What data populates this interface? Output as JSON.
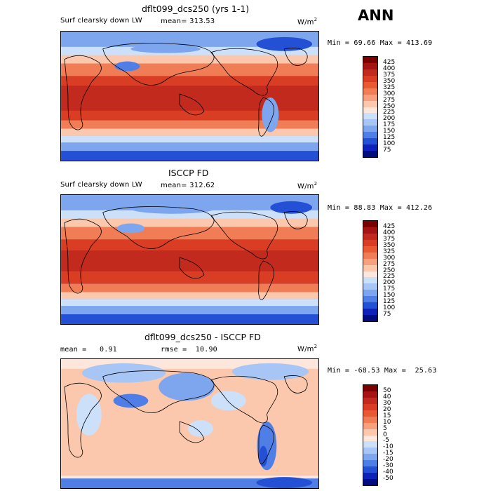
{
  "season": "ANN",
  "units": "W/m",
  "units_sup": "2",
  "panels": [
    {
      "title": "dflt099_dcs250 (yrs 1-1)",
      "variable": "Surf clearsky down LW",
      "mean_label": "mean=",
      "mean": "313.53",
      "min_label": "Min =",
      "min": "69.66",
      "max_label": "Max =",
      "max": "413.69",
      "levels": [
        "425",
        "400",
        "375",
        "350",
        "325",
        "300",
        "275",
        "250",
        "225",
        "200",
        "175",
        "150",
        "125",
        "100",
        "75"
      ],
      "colors": [
        "#7a0000",
        "#a51414",
        "#c22a1e",
        "#d93d24",
        "#e85a32",
        "#f07d55",
        "#f6a07d",
        "#fbc8ae",
        "#fde7dc",
        "#cde0fa",
        "#a7c6f5",
        "#7ea6ef",
        "#4f7fe6",
        "#2450d6",
        "#0c22b8",
        "#000c80"
      ]
    },
    {
      "title": "ISCCP FD",
      "variable": "Surf clearsky down LW",
      "mean_label": "mean=",
      "mean": "312.62",
      "min_label": "Min =",
      "min": "88.83",
      "max_label": "Max =",
      "max": "412.26",
      "levels": [
        "425",
        "400",
        "375",
        "350",
        "325",
        "300",
        "275",
        "250",
        "225",
        "200",
        "175",
        "150",
        "125",
        "100",
        "75"
      ],
      "colors": [
        "#7a0000",
        "#a51414",
        "#c22a1e",
        "#d93d24",
        "#e85a32",
        "#f07d55",
        "#f6a07d",
        "#fbc8ae",
        "#fde7dc",
        "#cde0fa",
        "#a7c6f5",
        "#7ea6ef",
        "#4f7fe6",
        "#2450d6",
        "#0c22b8",
        "#000c80"
      ]
    },
    {
      "title": "dflt099_dcs250 - ISCCP FD",
      "mean_label": "mean =",
      "mean": "0.91",
      "rmse_label": "rmse =",
      "rmse": "10.90",
      "min_label": "Min =",
      "min": "-68.53",
      "max_label": "Max =",
      "max": "25.63",
      "levels": [
        "50",
        "40",
        "30",
        "20",
        "15",
        "10",
        "5",
        "0",
        "-5",
        "-10",
        "-15",
        "-20",
        "-30",
        "-40",
        "-50"
      ],
      "colors": [
        "#7a0000",
        "#a51414",
        "#c22a1e",
        "#d93d24",
        "#e85a32",
        "#f07d55",
        "#f6a07d",
        "#fbc8ae",
        "#fde7dc",
        "#cde0fa",
        "#a7c6f5",
        "#7ea6ef",
        "#4f7fe6",
        "#2450d6",
        "#0c22b8",
        "#000c80"
      ]
    }
  ]
}
